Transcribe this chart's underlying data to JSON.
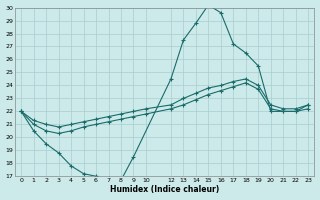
{
  "xlabel": "Humidex (Indice chaleur)",
  "bg_color": "#cceaea",
  "line_color": "#1a6b6b",
  "grid_color": "#aacccc",
  "xlim": [
    -0.5,
    23.5
  ],
  "ylim": [
    17,
    30
  ],
  "xticks": [
    0,
    1,
    2,
    3,
    4,
    5,
    6,
    7,
    8,
    9,
    10,
    12,
    13,
    14,
    15,
    16,
    17,
    18,
    19,
    20,
    21,
    22,
    23
  ],
  "yticks": [
    17,
    18,
    19,
    20,
    21,
    22,
    23,
    24,
    25,
    26,
    27,
    28,
    29,
    30
  ],
  "line1_x": [
    0,
    1,
    2,
    3,
    4,
    5,
    6,
    7,
    8,
    9,
    12,
    13,
    14,
    15,
    16,
    17,
    18,
    19,
    20,
    21,
    22,
    23
  ],
  "line1_y": [
    22,
    20.5,
    19.5,
    18.8,
    17.8,
    17.2,
    17.0,
    16.9,
    16.7,
    18.5,
    24.5,
    27.5,
    28.8,
    30.2,
    29.6,
    27.2,
    26.5,
    25.5,
    22.0,
    22.0,
    22.0,
    22.5
  ],
  "line2_x": [
    0,
    1,
    2,
    3,
    4,
    5,
    6,
    7,
    8,
    9,
    10,
    12,
    13,
    14,
    15,
    16,
    17,
    18,
    19,
    20,
    21,
    22,
    23
  ],
  "line2_y": [
    22.0,
    21.3,
    21.0,
    20.8,
    21.0,
    21.2,
    21.4,
    21.6,
    21.8,
    22.0,
    22.2,
    22.5,
    23.0,
    23.4,
    23.8,
    24.0,
    24.3,
    24.5,
    24.0,
    22.5,
    22.2,
    22.2,
    22.5
  ],
  "line3_x": [
    0,
    1,
    2,
    3,
    4,
    5,
    6,
    7,
    8,
    9,
    10,
    12,
    13,
    14,
    15,
    16,
    17,
    18,
    19,
    20,
    21,
    22,
    23
  ],
  "line3_y": [
    22.0,
    21.0,
    20.5,
    20.3,
    20.5,
    20.8,
    21.0,
    21.2,
    21.4,
    21.6,
    21.8,
    22.2,
    22.5,
    22.9,
    23.3,
    23.6,
    23.9,
    24.2,
    23.7,
    22.2,
    22.0,
    22.0,
    22.2
  ],
  "marker": "+",
  "markersize": 3,
  "linewidth": 0.8
}
